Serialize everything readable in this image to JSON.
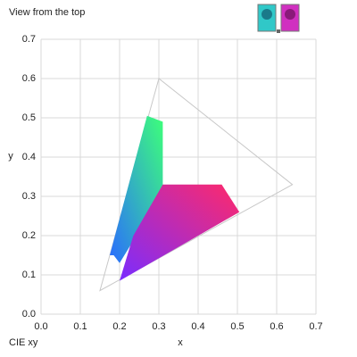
{
  "chart_data": {
    "type": "scatter",
    "title": "View from the top",
    "annotation": "CIE xy",
    "x_label": "x",
    "y_label": "y",
    "xlim": [
      0,
      0.7
    ],
    "ylim": [
      0,
      0.7
    ],
    "xticks": [
      {
        "value": 0,
        "label": "0.0"
      },
      0.1,
      0.2,
      0.3,
      0.4,
      0.5,
      0.6,
      0.7
    ],
    "yticks": [
      {
        "value": 0,
        "label": "0.0"
      },
      0.1,
      0.2,
      0.3,
      0.4,
      0.5,
      0.6,
      0.7
    ],
    "grid": true,
    "series": [
      {
        "color": "#c8c8c8",
        "x": [
          0.64,
          0.3,
          0.15
        ],
        "y": [
          0.33,
          0.6,
          0.06
        ]
      },
      {
        "colors": [
          "#2a6cff",
          "#3dff7a"
        ],
        "x": [
          0.175,
          0.27,
          0.31,
          0.31,
          0.2,
          0.185
        ],
        "y": [
          0.15,
          0.505,
          0.49,
          0.31,
          0.13,
          0.15
        ]
      },
      {
        "colors": [
          "#7a2cff",
          "#ff2a6a"
        ],
        "x": [
          0.2,
          0.235,
          0.31,
          0.46,
          0.505,
          0.2
        ],
        "y": [
          0.085,
          0.2,
          0.33,
          0.33,
          0.26,
          0.085
        ]
      }
    ]
  }
}
